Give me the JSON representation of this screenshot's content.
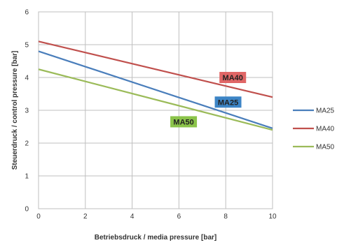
{
  "chart_data": {
    "type": "line",
    "xlabel": "Betriebsdruck / media pressure [bar]",
    "ylabel": "Steuerdruck / control pressure [bar]",
    "xlim": [
      0,
      10
    ],
    "ylim": [
      0,
      6
    ],
    "x_ticks": [
      "0",
      "2",
      "4",
      "6",
      "8",
      "10"
    ],
    "y_ticks": [
      "0",
      "1",
      "2",
      "3",
      "4",
      "5",
      "6"
    ],
    "grid": true,
    "legend_position": "right",
    "series": [
      {
        "name": "MA25",
        "color": "#4a7ebb",
        "x": [
          0,
          10
        ],
        "y": [
          4.8,
          2.45
        ]
      },
      {
        "name": "MA40",
        "color": "#c0504d",
        "x": [
          0,
          10
        ],
        "y": [
          5.1,
          3.4
        ]
      },
      {
        "name": "MA50",
        "color": "#9bbb59",
        "x": [
          0,
          10
        ],
        "y": [
          4.25,
          2.4
        ]
      }
    ],
    "annotations": [
      {
        "text": "MA40",
        "color": "#e06666",
        "x": 8.3,
        "y": 4.0
      },
      {
        "text": "MA25",
        "color": "#3d85c6",
        "x": 8.1,
        "y": 3.25
      },
      {
        "text": "MA50",
        "color": "#8bc34a",
        "x": 6.2,
        "y": 2.65
      }
    ]
  }
}
